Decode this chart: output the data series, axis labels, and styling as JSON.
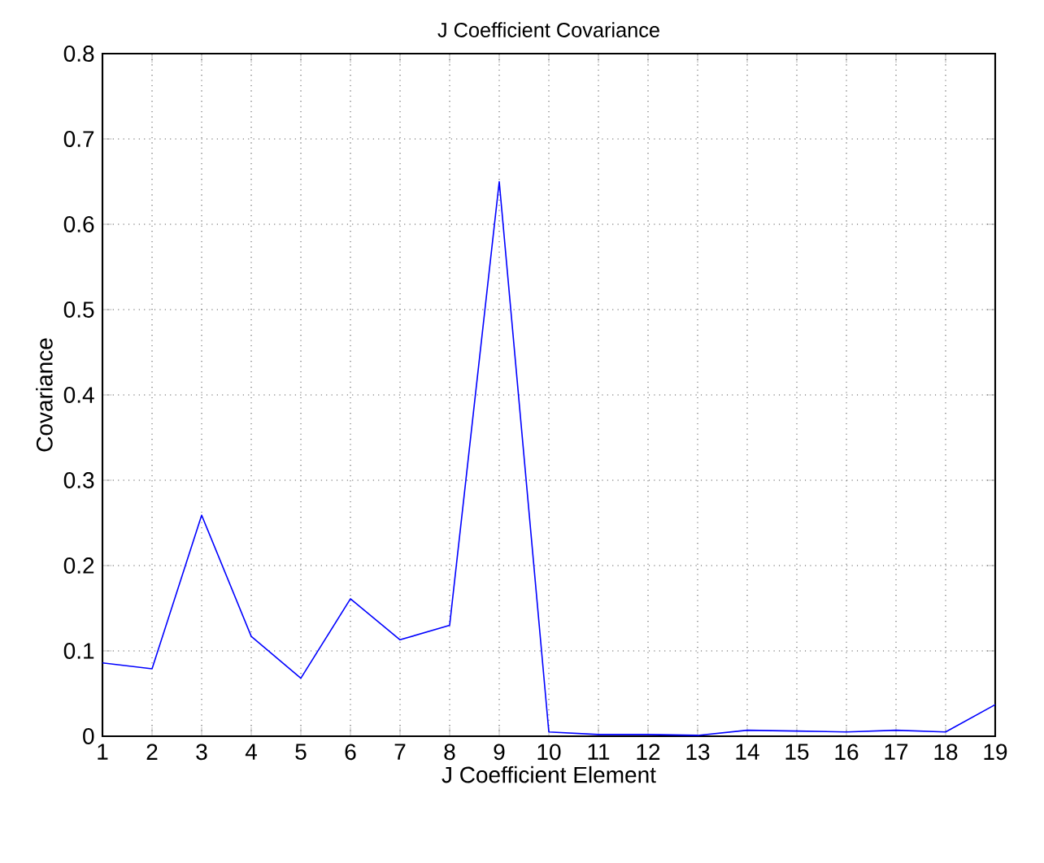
{
  "chart_data": {
    "type": "line",
    "title": "J Coefficient Covariance",
    "xlabel": "J Coefficient Element",
    "ylabel": "Covariance",
    "x": [
      1,
      2,
      3,
      4,
      5,
      6,
      7,
      8,
      9,
      10,
      11,
      12,
      13,
      14,
      15,
      16,
      17,
      18,
      19
    ],
    "series": [
      {
        "color": "#0000ff",
        "values": [
          0.086,
          0.079,
          0.259,
          0.117,
          0.068,
          0.161,
          0.113,
          0.13,
          0.65,
          0.005,
          0.002,
          0.002,
          0.001,
          0.007,
          0.006,
          0.005,
          0.007,
          0.005,
          0.037
        ]
      }
    ],
    "xlim": [
      1,
      19
    ],
    "ylim": [
      0,
      0.8
    ],
    "xticks": [
      1,
      2,
      3,
      4,
      5,
      6,
      7,
      8,
      9,
      10,
      11,
      12,
      13,
      14,
      15,
      16,
      17,
      18,
      19
    ],
    "yticks": [
      0,
      0.1,
      0.2,
      0.3,
      0.4,
      0.5,
      0.6,
      0.7,
      0.8
    ],
    "grid": true,
    "line_style": "solid",
    "legend": false,
    "marker": "none"
  }
}
